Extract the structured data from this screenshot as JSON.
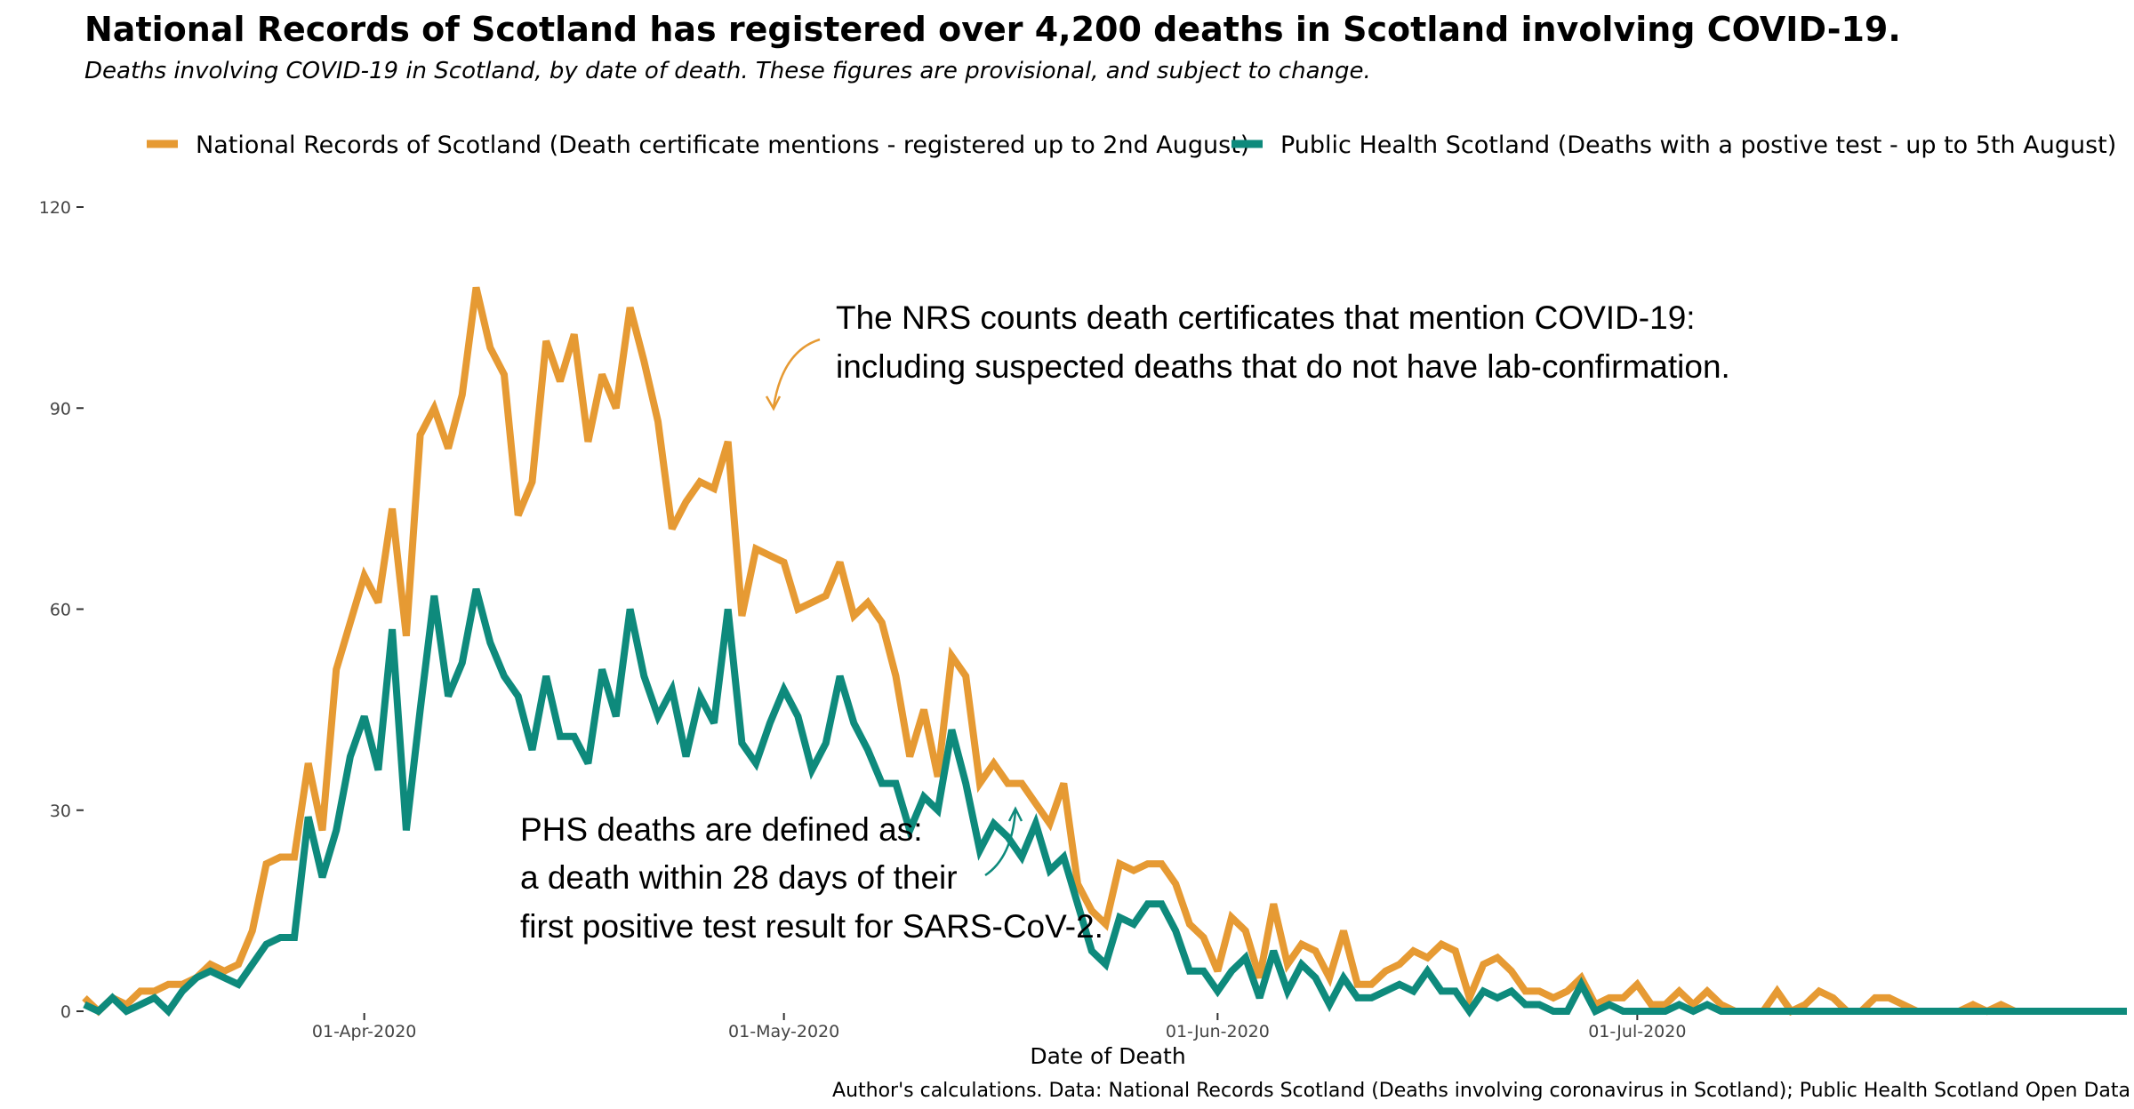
{
  "title": "National Records of Scotland has registered over 4,200 deaths in Scotland involving COVID-19.",
  "subtitle": "Deaths involving COVID-19 in Scotland, by date of death. These figures are provisional, and subject to change.",
  "caption": "Author's calculations. Data: National Records Scotland (Deaths involving coronavirus in Scotland); Public Health Scotland Open Data",
  "chart_data": {
    "type": "line",
    "xlabel": "Date of Death",
    "ylabel": "",
    "ylim": [
      0,
      120
    ],
    "yticks": [
      0,
      30,
      60,
      90,
      120
    ],
    "x_start": "2020-03-12",
    "xlim": [
      "2020-03-12",
      "2020-08-05"
    ],
    "x_ticks": [
      {
        "date": "2020-04-01",
        "label": "01-Apr-2020"
      },
      {
        "date": "2020-05-01",
        "label": "01-May-2020"
      },
      {
        "date": "2020-06-01",
        "label": "01-Jun-2020"
      },
      {
        "date": "2020-07-01",
        "label": "01-Jul-2020"
      }
    ],
    "grid": false,
    "legend_position": "top",
    "series": [
      {
        "name": "National Records of Scotland (Death certificate mentions - registered up to 2nd August)",
        "color": "#E69A33",
        "values": [
          2,
          0,
          2,
          1,
          3,
          3,
          4,
          4,
          5,
          7,
          6,
          7,
          12,
          22,
          23,
          23,
          37,
          27,
          51,
          58,
          65,
          61,
          75,
          56,
          86,
          90,
          84,
          92,
          108,
          99,
          95,
          74,
          79,
          100,
          94,
          101,
          85,
          95,
          90,
          105,
          97,
          88,
          72,
          76,
          79,
          78,
          85,
          59,
          69,
          68,
          67,
          60,
          61,
          62,
          67,
          59,
          61,
          58,
          50,
          38,
          45,
          35,
          53,
          50,
          34,
          37,
          34,
          34,
          31,
          28,
          34,
          19,
          15,
          13,
          22,
          21,
          22,
          22,
          19,
          13,
          11,
          6,
          14,
          12,
          5,
          16,
          7,
          10,
          9,
          5,
          12,
          4,
          4,
          6,
          7,
          9,
          8,
          10,
          9,
          2,
          7,
          8,
          6,
          3,
          3,
          2,
          3,
          5,
          1,
          2,
          2,
          4,
          1,
          1,
          3,
          1,
          3,
          1,
          0,
          0,
          0,
          3,
          0,
          1,
          3,
          2,
          0,
          0,
          2,
          2,
          1,
          0,
          0,
          0,
          0,
          1,
          0,
          1,
          0
        ]
      },
      {
        "name": "Public Health Scotland (Deaths with a postive test - up to 5th August)",
        "color": "#0E8A7C",
        "values": [
          1,
          0,
          2,
          0,
          1,
          2,
          0,
          3,
          5,
          6,
          5,
          4,
          7,
          10,
          11,
          11,
          29,
          20,
          27,
          38,
          44,
          36,
          57,
          27,
          45,
          62,
          47,
          52,
          63,
          55,
          50,
          47,
          39,
          50,
          41,
          41,
          37,
          51,
          44,
          60,
          50,
          44,
          48,
          38,
          47,
          43,
          60,
          40,
          37,
          43,
          48,
          44,
          36,
          40,
          50,
          43,
          39,
          34,
          34,
          27,
          32,
          30,
          42,
          34,
          24,
          28,
          26,
          23,
          28,
          21,
          23,
          16,
          9,
          7,
          14,
          13,
          16,
          16,
          12,
          6,
          6,
          3,
          6,
          8,
          2,
          9,
          3,
          7,
          5,
          1,
          5,
          2,
          2,
          3,
          4,
          3,
          6,
          3,
          3,
          0,
          3,
          2,
          3,
          1,
          1,
          0,
          0,
          4,
          0,
          1,
          0,
          0,
          0,
          0,
          1,
          0,
          1,
          0,
          0,
          0,
          0,
          0,
          0,
          0,
          0,
          0,
          0,
          0,
          0,
          0,
          0,
          0,
          0,
          0,
          0,
          0,
          0,
          0,
          0,
          0,
          0,
          0,
          0,
          0,
          0,
          0,
          0
        ]
      }
    ],
    "annotations": [
      {
        "lines": [
          "The NRS counts death certificates that mention COVID-19:",
          "including suspected deaths that do not have lab-confirmation."
        ]
      },
      {
        "lines": [
          "PHS deaths are defined as:",
          "a death within 28 days of their",
          "first positive test result for SARS-CoV-2."
        ]
      }
    ]
  }
}
